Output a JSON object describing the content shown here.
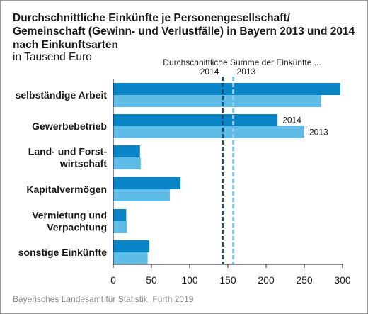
{
  "title": "Durchschnittliche Einkünfte je Personengesellschaft/ Gemeinschaft (Gewinn- und Verlustfälle) in Bayern 2013 und 2014 nach Einkunftsarten",
  "subtitle": "in Tausend Euro",
  "source": "Bayerisches Landesamt für Statistik, Fürth 2019",
  "reference_label": "Durchschnittliche Summe der Einkünfte ...",
  "colors": {
    "2014": "#0a86c8",
    "2013": "#5dbbe5",
    "ref_2014": "#1c4f6d",
    "ref_2013": "#8ccbe8"
  },
  "chart_data": {
    "type": "bar",
    "orientation": "horizontal",
    "categories": [
      [
        "selbständige Arbeit"
      ],
      [
        "Gewerbebetrieb"
      ],
      [
        "Land- und Forst-",
        "wirtschaft"
      ],
      [
        "Kapitalvermögen"
      ],
      [
        "Vermietung und",
        "Verpachtung"
      ],
      [
        "sonstige Einkünfte"
      ]
    ],
    "series": [
      {
        "name": "2014",
        "values": [
          297,
          215,
          35,
          88,
          17,
          47
        ]
      },
      {
        "name": "2013",
        "values": [
          272,
          250,
          36,
          74,
          18,
          45
        ]
      }
    ],
    "reference_lines": [
      {
        "name": "2014",
        "value": 143
      },
      {
        "name": "2013",
        "value": 157
      }
    ],
    "series_labels_on_category": "Gewerbebetrieb",
    "xlim": [
      0,
      300
    ],
    "xticks": [
      0,
      50,
      100,
      150,
      200,
      250,
      300
    ],
    "grid": false,
    "legend": "none"
  }
}
